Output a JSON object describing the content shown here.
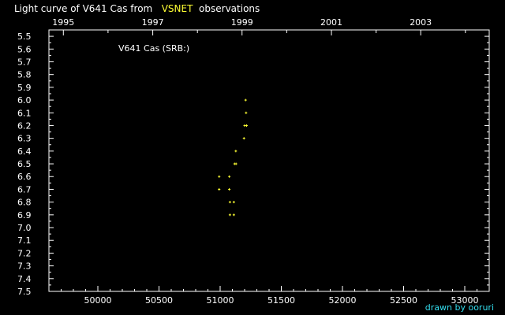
{
  "title": {
    "prefix": "Light curve of V641 Cas from",
    "highlight": "VSNET",
    "suffix": "observations"
  },
  "credit": "drawn by ooruri",
  "colors": {
    "background": "#000000",
    "axes": "#ffffff",
    "points": "#ffff33",
    "highlight": "#ffff33",
    "credit": "#33ddee"
  },
  "chart_data": {
    "type": "scatter",
    "annotation": "V641 Cas (SRB:)",
    "x_axis": {
      "label": "",
      "range": [
        49600,
        53200
      ],
      "ticks": [
        50000,
        50500,
        51000,
        51500,
        52000,
        52500,
        53000
      ],
      "tick_labels": [
        "50000",
        "50500",
        "51000",
        "51500",
        "52000",
        "52500",
        "53000"
      ],
      "minor_step": 100
    },
    "top_axis": {
      "label": "",
      "ticks_jd": [
        49718,
        50449,
        51179,
        51910,
        52640
      ],
      "tick_labels": [
        "1995",
        "1997",
        "1999",
        "2001",
        "2003"
      ]
    },
    "y_axis": {
      "label": "",
      "range": [
        5.45,
        7.5
      ],
      "inverted": true,
      "ticks": [
        5.5,
        5.6,
        5.7,
        5.8,
        5.9,
        6.0,
        6.1,
        6.2,
        6.3,
        6.4,
        6.5,
        6.6,
        6.7,
        6.8,
        6.9,
        7.0,
        7.1,
        7.2,
        7.3,
        7.4,
        7.5
      ],
      "tick_labels": [
        "5.5",
        "5.6",
        "5.7",
        "5.8",
        "5.9",
        "6.0",
        "6.1",
        "6.2",
        "6.3",
        "6.4",
        "6.5",
        "6.6",
        "6.7",
        "6.8",
        "6.9",
        "7.0",
        "7.1",
        "7.2",
        "7.3",
        "7.4",
        "7.5"
      ]
    },
    "grid": false,
    "points": [
      {
        "x": 50992,
        "y": 6.6
      },
      {
        "x": 50992,
        "y": 6.7
      },
      {
        "x": 51075,
        "y": 6.6
      },
      {
        "x": 51075,
        "y": 6.7
      },
      {
        "x": 51080,
        "y": 6.8
      },
      {
        "x": 51080,
        "y": 6.9
      },
      {
        "x": 51112,
        "y": 6.8
      },
      {
        "x": 51112,
        "y": 6.9
      },
      {
        "x": 51118,
        "y": 6.5
      },
      {
        "x": 51130,
        "y": 6.5
      },
      {
        "x": 51128,
        "y": 6.4
      },
      {
        "x": 51195,
        "y": 6.3
      },
      {
        "x": 51200,
        "y": 6.2
      },
      {
        "x": 51216,
        "y": 6.2
      },
      {
        "x": 51212,
        "y": 6.1
      },
      {
        "x": 51208,
        "y": 6.0
      }
    ]
  }
}
